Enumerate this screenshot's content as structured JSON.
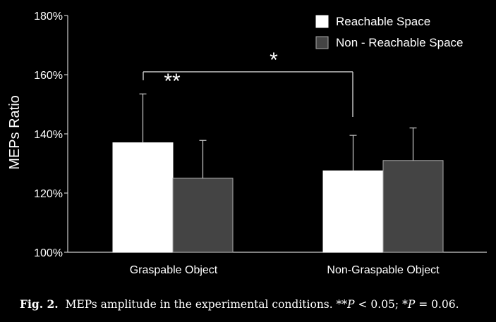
{
  "chart_data": {
    "type": "bar",
    "categories": [
      "Graspable Object",
      "Non-Graspable Object"
    ],
    "series": [
      {
        "name": "Reachable Space",
        "color": "#ffffff",
        "values": [
          137,
          127.5
        ],
        "errors": [
          16.5,
          12
        ]
      },
      {
        "name": "Non - Reachable Space",
        "color": "#444444",
        "values": [
          125,
          131
        ],
        "errors": [
          12.8,
          11
        ]
      }
    ],
    "ylabel": "MEPs Ratio",
    "xlabel": "",
    "ylim": [
      100,
      180
    ],
    "yticks": [
      100,
      120,
      140,
      160,
      180
    ],
    "ytick_labels": [
      "100%",
      "120%",
      "140%",
      "160%",
      "180%"
    ],
    "grid": false,
    "legend_position": "top-right",
    "annotations": [
      {
        "label": "**",
        "y": 160.5
      },
      {
        "label": "*",
        "y": 164
      }
    ]
  },
  "caption": {
    "fig_label": "Fig. 2.",
    "text": "MEPs amplitude in the experimental conditions. ",
    "sig1_stars": "**",
    "p_symbol": "P",
    "sig1_rest": " < 0.05; ",
    "sig2_stars": "*",
    "sig2_rest": " = 0.06."
  }
}
